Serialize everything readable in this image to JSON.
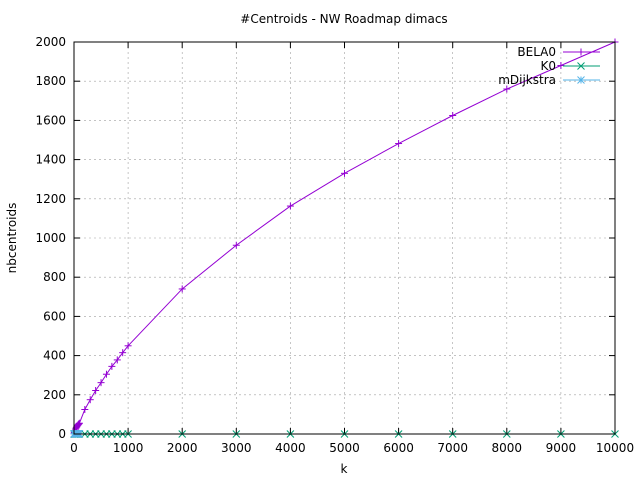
{
  "chart_data": {
    "type": "line",
    "title": "#Centroids - NW Roadmap dimacs",
    "xlabel": "k",
    "ylabel": "nbcentroids",
    "xlim": [
      0,
      10000
    ],
    "ylim": [
      0,
      2000
    ],
    "xticks": [
      0,
      1000,
      2000,
      3000,
      4000,
      5000,
      6000,
      7000,
      8000,
      9000,
      10000
    ],
    "yticks": [
      0,
      200,
      400,
      600,
      800,
      1000,
      1200,
      1400,
      1600,
      1800,
      2000
    ],
    "grid": true,
    "legend_position": "top-right",
    "series": [
      {
        "name": "BELA0",
        "color": "#9400d3",
        "marker": "plus",
        "points": [
          [
            1,
            1
          ],
          [
            5,
            6
          ],
          [
            10,
            10
          ],
          [
            20,
            18
          ],
          [
            30,
            25
          ],
          [
            40,
            31
          ],
          [
            50,
            36
          ],
          [
            60,
            41
          ],
          [
            70,
            45
          ],
          [
            80,
            48
          ],
          [
            90,
            52
          ],
          [
            100,
            55
          ],
          [
            200,
            125
          ],
          [
            300,
            175
          ],
          [
            400,
            222
          ],
          [
            500,
            262
          ],
          [
            600,
            305
          ],
          [
            700,
            345
          ],
          [
            800,
            378
          ],
          [
            900,
            415
          ],
          [
            1000,
            450
          ],
          [
            2000,
            740
          ],
          [
            3000,
            963
          ],
          [
            4000,
            1163
          ],
          [
            5000,
            1330
          ],
          [
            6000,
            1482
          ],
          [
            7000,
            1625
          ],
          [
            8000,
            1760
          ],
          [
            9000,
            1880
          ],
          [
            10000,
            2000
          ]
        ]
      },
      {
        "name": "K0",
        "color": "#009e73",
        "marker": "cross",
        "points": [
          [
            1,
            0
          ],
          [
            5,
            0
          ],
          [
            10,
            0
          ],
          [
            20,
            0
          ],
          [
            30,
            0
          ],
          [
            40,
            0
          ],
          [
            50,
            0
          ],
          [
            60,
            0
          ],
          [
            70,
            0
          ],
          [
            80,
            0
          ],
          [
            90,
            0
          ],
          [
            100,
            0
          ],
          [
            200,
            0
          ],
          [
            300,
            0
          ],
          [
            400,
            0
          ],
          [
            500,
            0
          ],
          [
            600,
            0
          ],
          [
            700,
            0
          ],
          [
            800,
            0
          ],
          [
            900,
            0
          ],
          [
            1000,
            0
          ],
          [
            2000,
            0
          ],
          [
            3000,
            0
          ],
          [
            4000,
            0
          ],
          [
            5000,
            0
          ],
          [
            6000,
            0
          ],
          [
            7000,
            0
          ],
          [
            8000,
            0
          ],
          [
            9000,
            0
          ],
          [
            10000,
            0
          ]
        ]
      },
      {
        "name": "mDijkstra",
        "color": "#56b4e9",
        "marker": "star",
        "points": [
          [
            1,
            1
          ],
          [
            5,
            1
          ],
          [
            10,
            1
          ],
          [
            20,
            1
          ],
          [
            30,
            1
          ],
          [
            40,
            1
          ],
          [
            50,
            1
          ],
          [
            60,
            1
          ],
          [
            70,
            1
          ],
          [
            80,
            1
          ],
          [
            90,
            1
          ],
          [
            100,
            1
          ]
        ]
      }
    ]
  }
}
